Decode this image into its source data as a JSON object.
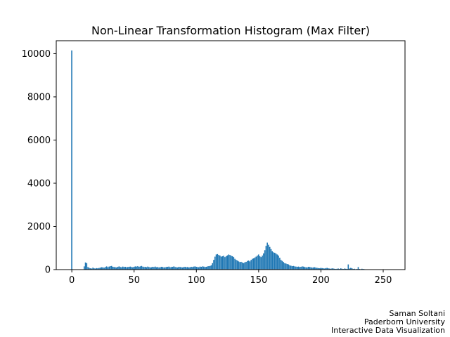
{
  "chart_data": {
    "type": "bar",
    "title": "Non-Linear Transformation Histogram (Max Filter)",
    "xlabel": "",
    "ylabel": "",
    "xlim": [
      -12.5,
      267.5
    ],
    "ylim": [
      0,
      10600
    ],
    "xticks": [
      0,
      50,
      100,
      150,
      200,
      250
    ],
    "yticks": [
      0,
      2000,
      4000,
      6000,
      8000,
      10000
    ],
    "bar_color": "#1f77b4",
    "grid": false,
    "series": [
      {
        "x_start": 0,
        "values": [
          10150,
          0,
          0,
          0,
          0,
          0,
          0,
          0,
          0,
          0,
          150,
          330,
          300,
          120,
          80,
          60,
          50,
          90,
          60,
          50,
          70,
          60,
          80,
          90,
          110,
          100,
          90,
          120,
          150,
          110,
          140,
          160,
          170,
          130,
          120,
          110,
          100,
          130,
          150,
          120,
          110,
          140,
          120,
          130,
          110,
          120,
          130,
          140,
          120,
          110,
          130,
          150,
          140,
          160,
          130,
          150,
          170,
          140,
          120,
          130,
          110,
          140,
          120,
          100,
          110,
          130,
          120,
          140,
          110,
          120,
          100,
          110,
          130,
          120,
          100,
          110,
          120,
          130,
          140,
          110,
          120,
          130,
          150,
          120,
          110,
          100,
          130,
          120,
          110,
          100,
          120,
          130,
          110,
          120,
          100,
          110,
          130,
          120,
          140,
          150,
          130,
          120,
          110,
          140,
          130,
          150,
          140,
          120,
          130,
          150,
          160,
          170,
          200,
          300,
          450,
          600,
          700,
          720,
          680,
          650,
          600,
          620,
          640,
          580,
          620,
          660,
          700,
          680,
          640,
          620,
          580,
          500,
          450,
          420,
          380,
          350,
          360,
          330,
          300,
          340,
          360,
          400,
          420,
          380,
          450,
          500,
          520,
          560,
          600,
          650,
          700,
          620,
          580,
          650,
          750,
          900,
          1100,
          1250,
          1150,
          1050,
          950,
          850,
          800,
          780,
          740,
          700,
          650,
          550,
          450,
          400,
          350,
          300,
          280,
          260,
          240,
          200,
          180,
          160,
          170,
          150,
          140,
          130,
          140,
          120,
          130,
          150,
          140,
          120,
          110,
          100,
          130,
          120,
          110,
          90,
          100,
          110,
          90,
          80,
          70,
          60,
          80,
          70,
          60,
          50,
          70,
          80,
          60,
          50,
          40,
          60,
          50,
          40,
          30,
          40,
          50,
          30,
          60,
          40,
          30,
          50,
          40,
          30,
          240,
          50,
          80,
          60,
          30,
          40,
          20,
          30,
          120,
          30,
          20,
          40,
          30,
          20
        ]
      }
    ]
  },
  "credits": {
    "line1": "Saman Soltani",
    "line2": "Paderborn University",
    "line3": "Interactive Data Visualization"
  }
}
